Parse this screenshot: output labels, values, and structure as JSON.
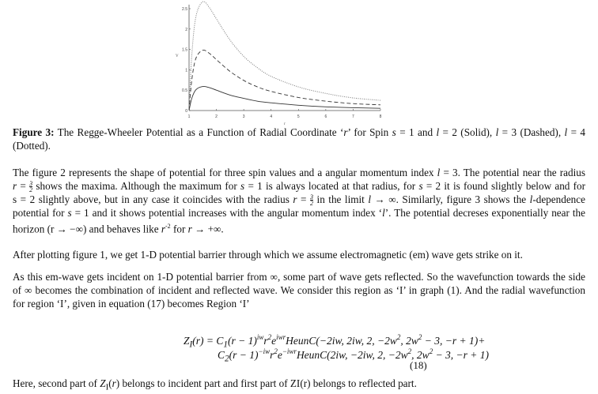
{
  "chart_data": {
    "type": "line",
    "xlabel": "r",
    "ylabel": "V",
    "xlim": [
      1,
      8
    ],
    "ylim": [
      0,
      2.6
    ],
    "xticks": [
      1,
      2,
      3,
      4,
      5,
      6,
      7,
      8
    ],
    "yticks": [
      0,
      0.5,
      1,
      1.5,
      2,
      2.5
    ],
    "ytick_labels": [
      "0",
      "0.5",
      "1",
      "1.5",
      "2",
      "2.5"
    ],
    "grid": false,
    "x": [
      1,
      1.1,
      1.25,
      1.5,
      1.75,
      2,
      2.5,
      3,
      3.5,
      4,
      5,
      6,
      7,
      8
    ],
    "series": [
      {
        "style": "solid",
        "color": "#333333",
        "values": [
          0,
          0.3,
          0.51,
          0.59,
          0.56,
          0.5,
          0.38,
          0.3,
          0.23,
          0.19,
          0.13,
          0.09,
          0.07,
          0.055
        ]
      },
      {
        "style": "dashed",
        "color": "#333333",
        "values": [
          0,
          0.75,
          1.28,
          1.48,
          1.4,
          1.25,
          0.96,
          0.74,
          0.58,
          0.47,
          0.32,
          0.23,
          0.17,
          0.14
        ]
      },
      {
        "style": "dotted",
        "color": "#777777",
        "values": [
          0,
          1.35,
          2.3,
          2.67,
          2.52,
          2.25,
          1.73,
          1.33,
          1.05,
          0.84,
          0.58,
          0.42,
          0.31,
          0.25
        ]
      }
    ]
  },
  "text": {
    "caption": [
      [
        {
          "b": "Figure 3:"
        },
        {
          "t": " The Regge-Wheeler Potential as a Function of Radial Coordinate ‘"
        },
        {
          "i": "r"
        },
        {
          "t": "’ for Spin "
        },
        {
          "i": "s"
        },
        {
          "t": " = 1 and "
        },
        {
          "i": "l"
        },
        {
          "t": " = 2 (Solid), "
        },
        {
          "i": "l"
        },
        {
          "t": " = 3 (Dashed), "
        },
        {
          "i": "l"
        },
        {
          "t": " = 4"
        }
      ],
      [
        {
          "t": "(Dotted)."
        }
      ]
    ],
    "para1": [
      [
        {
          "t": "The figure 2 represents the shape of potential for three spin values and a angular momentum index "
        },
        {
          "i": "l"
        },
        {
          "t": " = 3. The potential near the radius"
        }
      ],
      [
        {
          "i": "r"
        },
        {
          "t": " = "
        },
        {
          "frac": [
            "3",
            "2"
          ]
        },
        {
          "t": " shows the maxima. Although the maximum for "
        },
        {
          "i": "s"
        },
        {
          "t": " = 1 is always located at that radius, for "
        },
        {
          "i": "s"
        },
        {
          "t": " = 2 it is found slightly below and for"
        }
      ],
      [
        {
          "t": "s = 2 slightly above, but in any case it coincides with the radius "
        },
        {
          "i": "r"
        },
        {
          "t": " = "
        },
        {
          "frac": [
            "3",
            "2"
          ]
        },
        {
          "t": " in the limit "
        },
        {
          "i": "l"
        },
        {
          "t": " → ∞. Similarly, figure 3 shows the "
        },
        {
          "i": "l"
        },
        {
          "t": "-dependence"
        }
      ],
      [
        {
          "t": "potential for "
        },
        {
          "i": "s"
        },
        {
          "t": " = 1 and it shows potential increases with the angular momentum index ‘"
        },
        {
          "i": "l"
        },
        {
          "t": "’. The potential decreses exponentially near the"
        }
      ],
      [
        {
          "t": "horizon (r → −∞) and behaves like "
        },
        {
          "i": "r"
        },
        {
          "sup": "-2"
        },
        {
          "t": " for "
        },
        {
          "i": "r"
        },
        {
          "t": " → +∞."
        }
      ]
    ],
    "para2": [
      [
        {
          "t": "After plotting figure 1, we get 1-D potential barrier through which we assume electromagnetic (em) wave gets strike on it."
        }
      ]
    ],
    "para3": [
      [
        {
          "t": "As this em-wave gets incident on 1-D potential barrier from ∞, some part of wave gets reflected. So the wavefunction towards the side"
        }
      ],
      [
        {
          "t": "of ∞ becomes the combination of incident and reflected wave. We consider this region as ‘I’ in graph (1). And the radial wavefunction"
        }
      ],
      [
        {
          "t": "for region ‘I’, given in equation (17) becomes Region ‘I’"
        }
      ]
    ],
    "equation": {
      "line1": [
        {
          "t": "Z"
        },
        {
          "sub": "I"
        },
        {
          "t": "(r) = C"
        },
        {
          "sub": "1"
        },
        {
          "t": "(r − 1)"
        },
        {
          "up": "iw"
        },
        {
          "t": "r"
        },
        {
          "up": "2"
        },
        {
          "t": "e"
        },
        {
          "up": "iwr"
        },
        {
          "t": "HeunC(−2iw, 2iw, 2, −2w"
        },
        {
          "up": "2"
        },
        {
          "t": ", 2w"
        },
        {
          "up": "2"
        },
        {
          "t": " − 3, −r + 1)+"
        }
      ],
      "line2": [
        {
          "t": "C"
        },
        {
          "sub": "2"
        },
        {
          "t": "(r − 1)"
        },
        {
          "up": "−iw"
        },
        {
          "t": "r"
        },
        {
          "up": "2"
        },
        {
          "t": "e"
        },
        {
          "up": "−iwr"
        },
        {
          "t": "HeunC(2iw, −2iw, 2, −2w"
        },
        {
          "up": "2"
        },
        {
          "t": ", 2w"
        },
        {
          "up": "2"
        },
        {
          "t": " − 3, −r + 1)"
        }
      ],
      "number": "(18)"
    },
    "para4": [
      [
        {
          "t": "Here, second part of "
        },
        {
          "i": "Z"
        },
        {
          "sub": "I"
        },
        {
          "t": "("
        },
        {
          "i": "r"
        },
        {
          "t": ") belongs to incident part and first part of ZI(r) belongs to reflected part."
        }
      ]
    ]
  }
}
